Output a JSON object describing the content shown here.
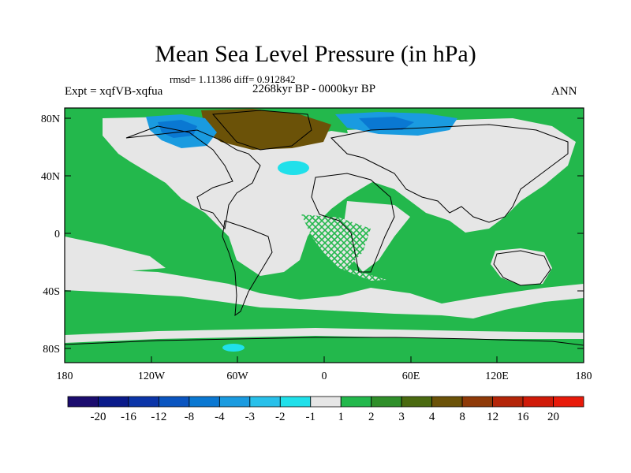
{
  "title": "Mean Sea Level Pressure (in hPa)",
  "stats": "rmsd= 1.11386 diff= 0.912842",
  "experiment": "Expt = xqfVB-xqfua",
  "period": "2268kyr BP - 0000kyr BP",
  "season": "ANN",
  "lat_ticks": [
    "80N",
    "40N",
    "0",
    "40S",
    "80S"
  ],
  "lon_ticks": [
    "180",
    "120W",
    "60W",
    "0",
    "60E",
    "120E",
    "180"
  ],
  "colorbar": {
    "labels": [
      "-20",
      "-16",
      "-12",
      "-8",
      "-4",
      "-3",
      "-2",
      "-1",
      "1",
      "2",
      "3",
      "4",
      "8",
      "12",
      "16",
      "20"
    ],
    "colors": [
      "#1b0c6e",
      "#0a1a8a",
      "#0b35a8",
      "#0a55c0",
      "#0a78d2",
      "#1a9be0",
      "#28c0ea",
      "#20e0ea",
      "#e6e6e6",
      "#23b84c",
      "#2f8f2a",
      "#4a6a10",
      "#6b5208",
      "#8f3a08",
      "#b42508",
      "#d01a08",
      "#e81a0a"
    ]
  },
  "colors": {
    "land_fill": "#e6e6e6",
    "positive_fill": "#23b84c",
    "strong_positive_fill": "#6b5208",
    "negative_fill": "#1a9be0",
    "strong_negative_fill": "#0a78d2"
  }
}
